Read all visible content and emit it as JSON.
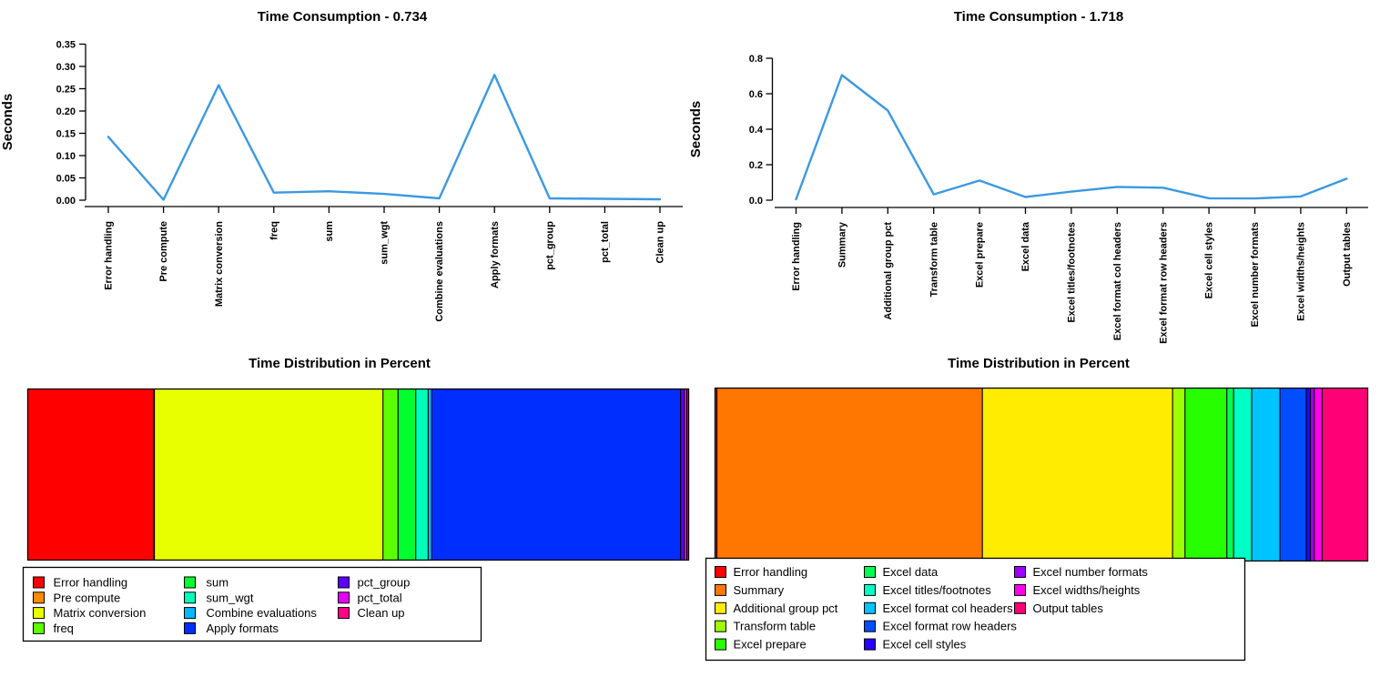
{
  "page": {
    "background": "#ffffff",
    "text_color": "#000000"
  },
  "chart_data": [
    {
      "id": "time-consumption-left",
      "type": "line",
      "title": "Time Consumption - 0.734",
      "ylabel": "Seconds",
      "line_color": "#3B99E1",
      "ylim": [
        0,
        0.35
      ],
      "yticks": [
        "0.00",
        "0.05",
        "0.10",
        "0.15",
        "0.20",
        "0.25",
        "0.30",
        "0.35"
      ],
      "grid": false,
      "categories": [
        "Error handling",
        "Pre compute",
        "Matrix conversion",
        "freq",
        "sum",
        "sum_wgt",
        "Combine evaluations",
        "Apply formats",
        "pct_group",
        "pct_total",
        "Clean up"
      ],
      "values": [
        0.142,
        0.001,
        0.258,
        0.017,
        0.02,
        0.014,
        0.004,
        0.281,
        0.004,
        0.003,
        0.002
      ]
    },
    {
      "id": "time-consumption-right",
      "type": "line",
      "title": "Time Consumption - 1.718",
      "ylabel": "Seconds",
      "line_color": "#3B99E1",
      "ylim": [
        0,
        0.8
      ],
      "yticks": [
        "0.0",
        "0.2",
        "0.4",
        "0.6",
        "0.8"
      ],
      "grid": false,
      "categories": [
        "Error handling",
        "Summary",
        "Additional group pct",
        "Transform table",
        "Excel prepare",
        "Excel data",
        "Excel titles/footnotes",
        "Excel format col headers",
        "Excel format row headers",
        "Excel cell styles",
        "Excel number formats",
        "Excel widths/heights",
        "Output tables"
      ],
      "values": [
        0.005,
        0.705,
        0.505,
        0.033,
        0.111,
        0.018,
        0.048,
        0.075,
        0.07,
        0.011,
        0.01,
        0.021,
        0.121
      ]
    },
    {
      "id": "time-distribution-left",
      "type": "stacked-bar",
      "title": "Time Distribution in Percent",
      "legend_position": "bottom-left",
      "legend_rows_per_col": [
        4,
        4,
        3
      ],
      "segments": [
        {
          "label": "Error handling",
          "color": "#FF0000",
          "value": 0.142
        },
        {
          "label": "Pre compute",
          "color": "#FF8B00",
          "value": 0.001
        },
        {
          "label": "Matrix conversion",
          "color": "#E8FF00",
          "value": 0.258
        },
        {
          "label": "freq",
          "color": "#5DFF00",
          "value": 0.017
        },
        {
          "label": "sum",
          "color": "#00FF2E",
          "value": 0.02
        },
        {
          "label": "sum_wgt",
          "color": "#00FFB9",
          "value": 0.014
        },
        {
          "label": "Combine evaluations",
          "color": "#00B9FF",
          "value": 0.004
        },
        {
          "label": "Apply formats",
          "color": "#002EFF",
          "value": 0.281
        },
        {
          "label": "pct_group",
          "color": "#5D00FF",
          "value": 0.004
        },
        {
          "label": "pct_total",
          "color": "#E800FF",
          "value": 0.003
        },
        {
          "label": "Clean up",
          "color": "#FF008B",
          "value": 0.002
        }
      ]
    },
    {
      "id": "time-distribution-right",
      "type": "stacked-bar",
      "title": "Time Distribution in Percent",
      "legend_position": "bottom-left",
      "legend_rows_per_col": [
        5,
        5,
        3
      ],
      "segments": [
        {
          "label": "Error handling",
          "color": "#FF0000",
          "value": 0.005
        },
        {
          "label": "Summary",
          "color": "#FF7600",
          "value": 0.705
        },
        {
          "label": "Additional group pct",
          "color": "#FFEC00",
          "value": 0.505
        },
        {
          "label": "Transform table",
          "color": "#9DFF00",
          "value": 0.033
        },
        {
          "label": "Excel prepare",
          "color": "#27FF00",
          "value": 0.111
        },
        {
          "label": "Excel data",
          "color": "#00FF4E",
          "value": 0.018
        },
        {
          "label": "Excel titles/footnotes",
          "color": "#00FFC4",
          "value": 0.048
        },
        {
          "label": "Excel format col headers",
          "color": "#00C4FF",
          "value": 0.075
        },
        {
          "label": "Excel format row headers",
          "color": "#004EFF",
          "value": 0.07
        },
        {
          "label": "Excel cell styles",
          "color": "#2700FF",
          "value": 0.011
        },
        {
          "label": "Excel number formats",
          "color": "#9D00FF",
          "value": 0.01
        },
        {
          "label": "Excel widths/heights",
          "color": "#FF00EB",
          "value": 0.021
        },
        {
          "label": "Output tables",
          "color": "#FF0076",
          "value": 0.121
        }
      ]
    }
  ]
}
